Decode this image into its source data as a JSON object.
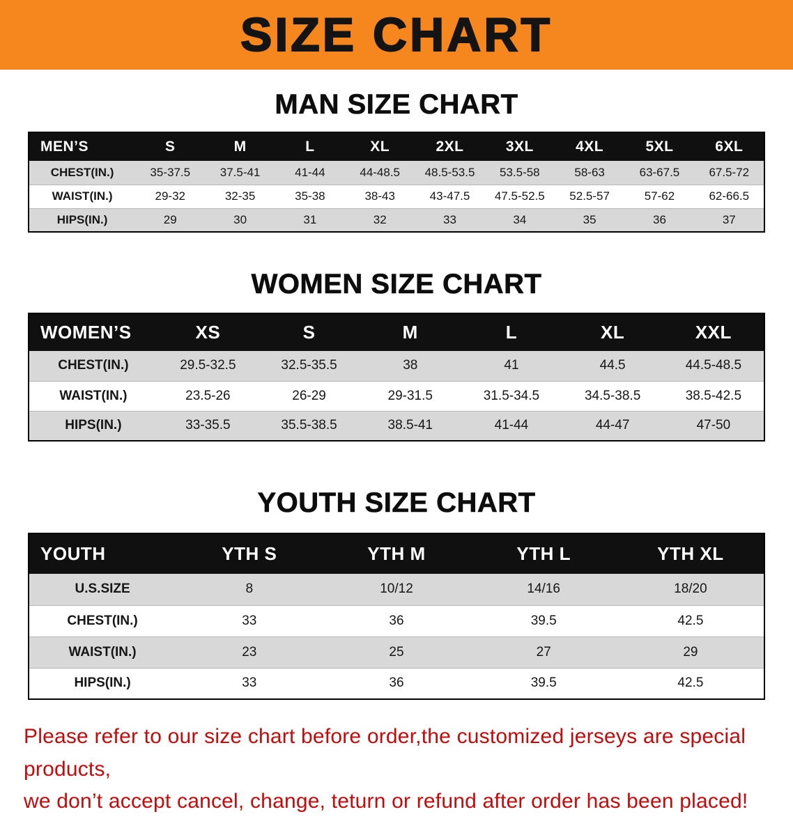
{
  "banner": {
    "title": "SIZE CHART"
  },
  "colors": {
    "banner-orange": "#f5871e",
    "header-black": "#101010",
    "row-gray": "#d8d8d8",
    "disclaimer-red": "#c30b0b"
  },
  "sections": [
    {
      "heading": "MAN SIZE CHART",
      "table": {
        "header": [
          "MEN’S",
          "S",
          "M",
          "L",
          "XL",
          "2XL",
          "3XL",
          "4XL",
          "5XL",
          "6XL"
        ],
        "rows": [
          [
            "CHEST(IN.)",
            "35-37.5",
            "37.5-41",
            "41-44",
            "44-48.5",
            "48.5-53.5",
            "53.5-58",
            "58-63",
            "63-67.5",
            "67.5-72"
          ],
          [
            "WAIST(IN.)",
            "29-32",
            "32-35",
            "35-38",
            "38-43",
            "43-47.5",
            "47.5-52.5",
            "52.5-57",
            "57-62",
            "62-66.5"
          ],
          [
            "HIPS(IN.)",
            "29",
            "30",
            "31",
            "32",
            "33",
            "34",
            "35",
            "36",
            "37"
          ]
        ]
      }
    },
    {
      "heading": "WOMEN SIZE CHART",
      "table": {
        "header": [
          "WOMEN’S",
          "XS",
          "S",
          "M",
          "L",
          "XL",
          "XXL"
        ],
        "rows": [
          [
            "CHEST(IN.)",
            "29.5-32.5",
            "32.5-35.5",
            "38",
            "41",
            "44.5",
            "44.5-48.5"
          ],
          [
            "WAIST(IN.)",
            "23.5-26",
            "26-29",
            "29-31.5",
            "31.5-34.5",
            "34.5-38.5",
            "38.5-42.5"
          ],
          [
            "HIPS(IN.)",
            "33-35.5",
            "35.5-38.5",
            "38.5-41",
            "41-44",
            "44-47",
            "47-50"
          ]
        ]
      }
    },
    {
      "heading": "YOUTH SIZE CHART",
      "table": {
        "header": [
          "YOUTH",
          "YTH S",
          "YTH M",
          "YTH L",
          "YTH XL"
        ],
        "rows": [
          [
            "U.S.SIZE",
            "8",
            "10/12",
            "14/16",
            "18/20"
          ],
          [
            "CHEST(IN.)",
            "33",
            "36",
            "39.5",
            "42.5"
          ],
          [
            "WAIST(IN.)",
            "23",
            "25",
            "27",
            "29"
          ],
          [
            "HIPS(IN.)",
            "33",
            "36",
            "39.5",
            "42.5"
          ]
        ]
      }
    }
  ],
  "disclaimer": {
    "line1": "Please refer to our size chart before order,the customized jerseys are special products,",
    "line2": "we don’t accept cancel, change, teturn or refund after order has been placed!"
  }
}
